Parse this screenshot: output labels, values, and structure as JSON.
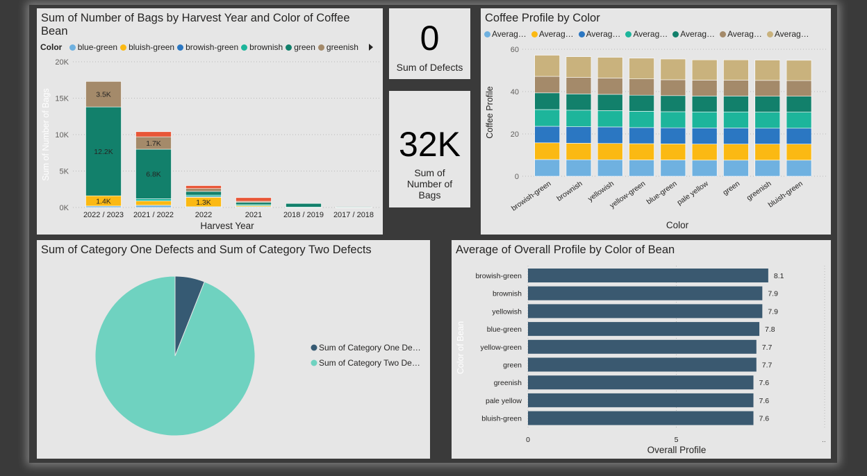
{
  "colors": {
    "blue-green": "#6fb1e0",
    "bluish-green": "#fbb913",
    "browish-green": "#2b77c2",
    "brownish": "#1db59b",
    "green": "#12806b",
    "greenish": "#a48a6a",
    "yellowish": "#c9b27d",
    "overflow": "#e85637",
    "pie_one": "#365a73",
    "pie_two": "#6fd2c0",
    "bar": "#3a5970"
  },
  "bags_chart": {
    "title": "Sum of Number of Bags by Harvest Year and Color of Coffee Bean",
    "legend_title": "Color",
    "legend": [
      "blue-green",
      "bluish-green",
      "browish-green",
      "brownish",
      "green",
      "greenish"
    ],
    "legend_more_icon": "chevron-right-icon"
  },
  "card_defects": {
    "value": "0",
    "label": "Sum of Defects"
  },
  "card_bags": {
    "value": "32K",
    "label": "Sum of Number of Bags"
  },
  "profile_chart": {
    "title": "Coffee Profile by Color",
    "legend": [
      "Averag…",
      "Averag…",
      "Averag…",
      "Averag…",
      "Averag…",
      "Averag…",
      "Averag…"
    ]
  },
  "pie_chart": {
    "title": "Sum of Category One Defects and Sum of Category Two Defects",
    "legend": [
      "Sum of Category One De…",
      "Sum of Category Two De…"
    ]
  },
  "overall_chart": {
    "title": "Average of Overall Profile by Color of Bean"
  },
  "chart_data": [
    {
      "type": "bar",
      "stacked": true,
      "title": "Sum of Number of Bags by Harvest Year and Color of Coffee Bean",
      "xlabel": "Harvest Year",
      "ylabel": "Sum of Number of Bags",
      "categories": [
        "2022 / 2023",
        "2021 / 2022",
        "2022",
        "2021",
        "2018 / 2019",
        "2017 / 2018"
      ],
      "yticks": [
        "0K",
        "5K",
        "10K",
        "15K",
        "20K"
      ],
      "ylim": [
        0,
        20000
      ],
      "series": [
        {
          "name": "blue-green",
          "values": [
            200,
            300,
            100,
            100,
            0,
            0
          ]
        },
        {
          "name": "bluish-green",
          "values": [
            1400,
            600,
            1300,
            150,
            0,
            20
          ]
        },
        {
          "name": "browish-green",
          "values": [
            0,
            0,
            100,
            0,
            0,
            0
          ]
        },
        {
          "name": "brownish",
          "values": [
            0,
            300,
            200,
            150,
            50,
            0
          ]
        },
        {
          "name": "green",
          "values": [
            12200,
            6800,
            500,
            300,
            500,
            30
          ]
        },
        {
          "name": "greenish",
          "values": [
            3500,
            1700,
            400,
            150,
            0,
            0
          ]
        },
        {
          "name": "other",
          "values": [
            0,
            700,
            400,
            500,
            0,
            0
          ]
        }
      ],
      "data_labels": [
        {
          "category": "2022 / 2023",
          "series": "bluish-green",
          "text": "1.4K"
        },
        {
          "category": "2022 / 2023",
          "series": "green",
          "text": "12.2K"
        },
        {
          "category": "2022 / 2023",
          "series": "greenish",
          "text": "3.5K"
        },
        {
          "category": "2021 / 2022",
          "series": "green",
          "text": "6.8K"
        },
        {
          "category": "2021 / 2022",
          "series": "greenish",
          "text": "1.7K"
        },
        {
          "category": "2022",
          "series": "bluish-green",
          "text": "1.3K"
        }
      ],
      "grid": true
    },
    {
      "type": "bar",
      "stacked": true,
      "title": "Coffee Profile by Color",
      "xlabel": "Color",
      "ylabel": "Coffee Profile",
      "categories": [
        "browish-green",
        "brownish",
        "yellowish",
        "yellow-green",
        "blue-green",
        "pale yellow",
        "green",
        "greenish",
        "bluish-green"
      ],
      "yticks": [
        "0",
        "20",
        "40",
        "60"
      ],
      "ylim": [
        0,
        60
      ],
      "series": [
        {
          "name": "Averag…",
          "values": [
            7.9,
            7.8,
            7.8,
            7.7,
            7.7,
            7.6,
            7.6,
            7.6,
            7.6
          ]
        },
        {
          "name": "Averag…",
          "values": [
            7.9,
            7.8,
            7.7,
            7.7,
            7.6,
            7.6,
            7.6,
            7.6,
            7.6
          ]
        },
        {
          "name": "Averag…",
          "values": [
            7.8,
            7.8,
            7.8,
            7.6,
            7.6,
            7.6,
            7.6,
            7.5,
            7.5
          ]
        },
        {
          "name": "Averag…",
          "values": [
            7.9,
            7.8,
            7.7,
            7.7,
            7.6,
            7.6,
            7.6,
            7.6,
            7.6
          ]
        },
        {
          "name": "Averag…",
          "values": [
            7.9,
            7.7,
            7.7,
            7.6,
            7.6,
            7.5,
            7.5,
            7.5,
            7.5
          ]
        },
        {
          "name": "Averag…",
          "values": [
            7.8,
            7.8,
            7.7,
            7.7,
            7.5,
            7.5,
            7.5,
            7.5,
            7.4
          ]
        },
        {
          "name": "Averag…",
          "values": [
            10.0,
            9.8,
            9.8,
            9.8,
            9.8,
            9.6,
            9.6,
            9.6,
            9.6
          ]
        }
      ],
      "grid": true
    },
    {
      "type": "pie",
      "title": "Sum of Category One Defects and Sum of Category Two Defects",
      "labels": [
        "Sum of Category One De…",
        "Sum of Category Two De…"
      ],
      "values": [
        6,
        94
      ]
    },
    {
      "type": "bar",
      "orientation": "horizontal",
      "title": "Average of Overall Profile by Color of Bean",
      "xlabel": "Overall Profile",
      "ylabel": "Color of Bean",
      "categories": [
        "browish-green",
        "brownish",
        "yellowish",
        "blue-green",
        "yellow-green",
        "green",
        "greenish",
        "pale yellow",
        "bluish-green"
      ],
      "values": [
        8.1,
        7.9,
        7.9,
        7.8,
        7.7,
        7.7,
        7.6,
        7.6,
        7.6
      ],
      "data_labels": [
        "8.1",
        "7.9",
        "7.9",
        "7.8",
        "7.7",
        "7.7",
        "7.6",
        "7.6",
        "7.6"
      ],
      "xticks": [
        "0",
        "5"
      ],
      "xlim": [
        0,
        10
      ],
      "grid": true
    }
  ]
}
